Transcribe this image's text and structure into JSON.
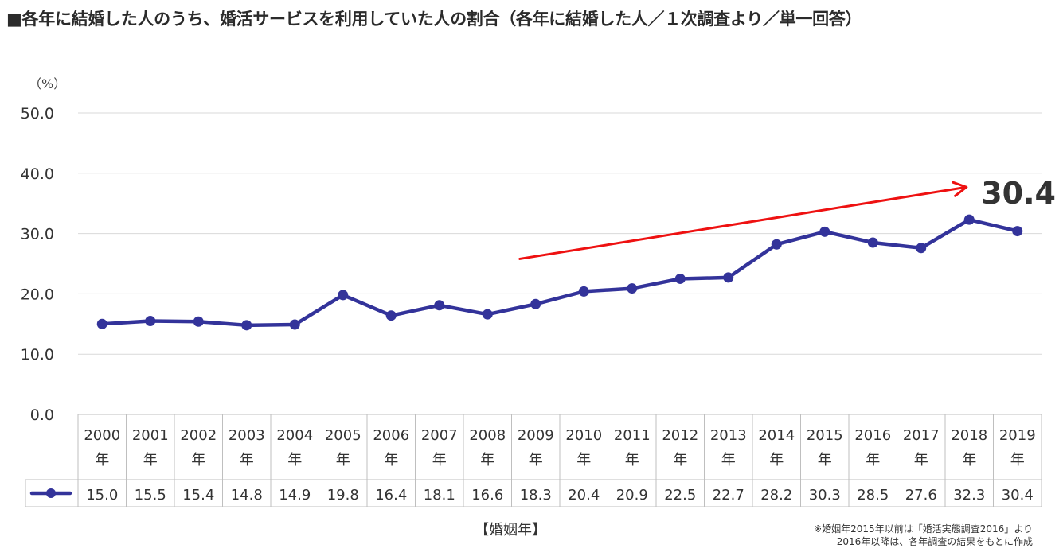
{
  "title": "■各年に結婚した人のうち、婚活サービスを利用していた人の割合（各年に結婚した人／１次調査より／単一回答）",
  "unit_label": "（%）",
  "xlabel": "【婚姻年】",
  "note_lines": [
    "※婚姻年2015年以前は「婚活実態調査2016」より",
    "2016年以降は、各年調査の結果をもとに作成"
  ],
  "highlight_value": "30.4",
  "colors": {
    "series": "#33339a",
    "trend_arrow": "#ee1111",
    "grid": "#d9d9d9",
    "text": "#333333"
  },
  "chart_data": {
    "type": "line",
    "categories": [
      "2000年",
      "2001年",
      "2002年",
      "2003年",
      "2004年",
      "2005年",
      "2006年",
      "2007年",
      "2008年",
      "2009年",
      "2010年",
      "2011年",
      "2012年",
      "2013年",
      "2014年",
      "2015年",
      "2016年",
      "2017年",
      "2018年",
      "2019年"
    ],
    "values": [
      15.0,
      15.5,
      15.4,
      14.8,
      14.9,
      19.8,
      16.4,
      18.1,
      16.6,
      18.3,
      20.4,
      20.9,
      22.5,
      22.7,
      28.2,
      30.3,
      28.5,
      27.6,
      32.3,
      30.4
    ],
    "ylim": [
      0,
      50
    ],
    "yticks": [
      "0.0",
      "10.0",
      "20.0",
      "30.0",
      "40.0",
      "50.0"
    ],
    "grid": true,
    "legend": "data-table",
    "trend_arrow": {
      "from": {
        "x": "2009年",
        "y": 25.8
      },
      "to": {
        "x": "2019年",
        "y": 37.7
      }
    }
  }
}
